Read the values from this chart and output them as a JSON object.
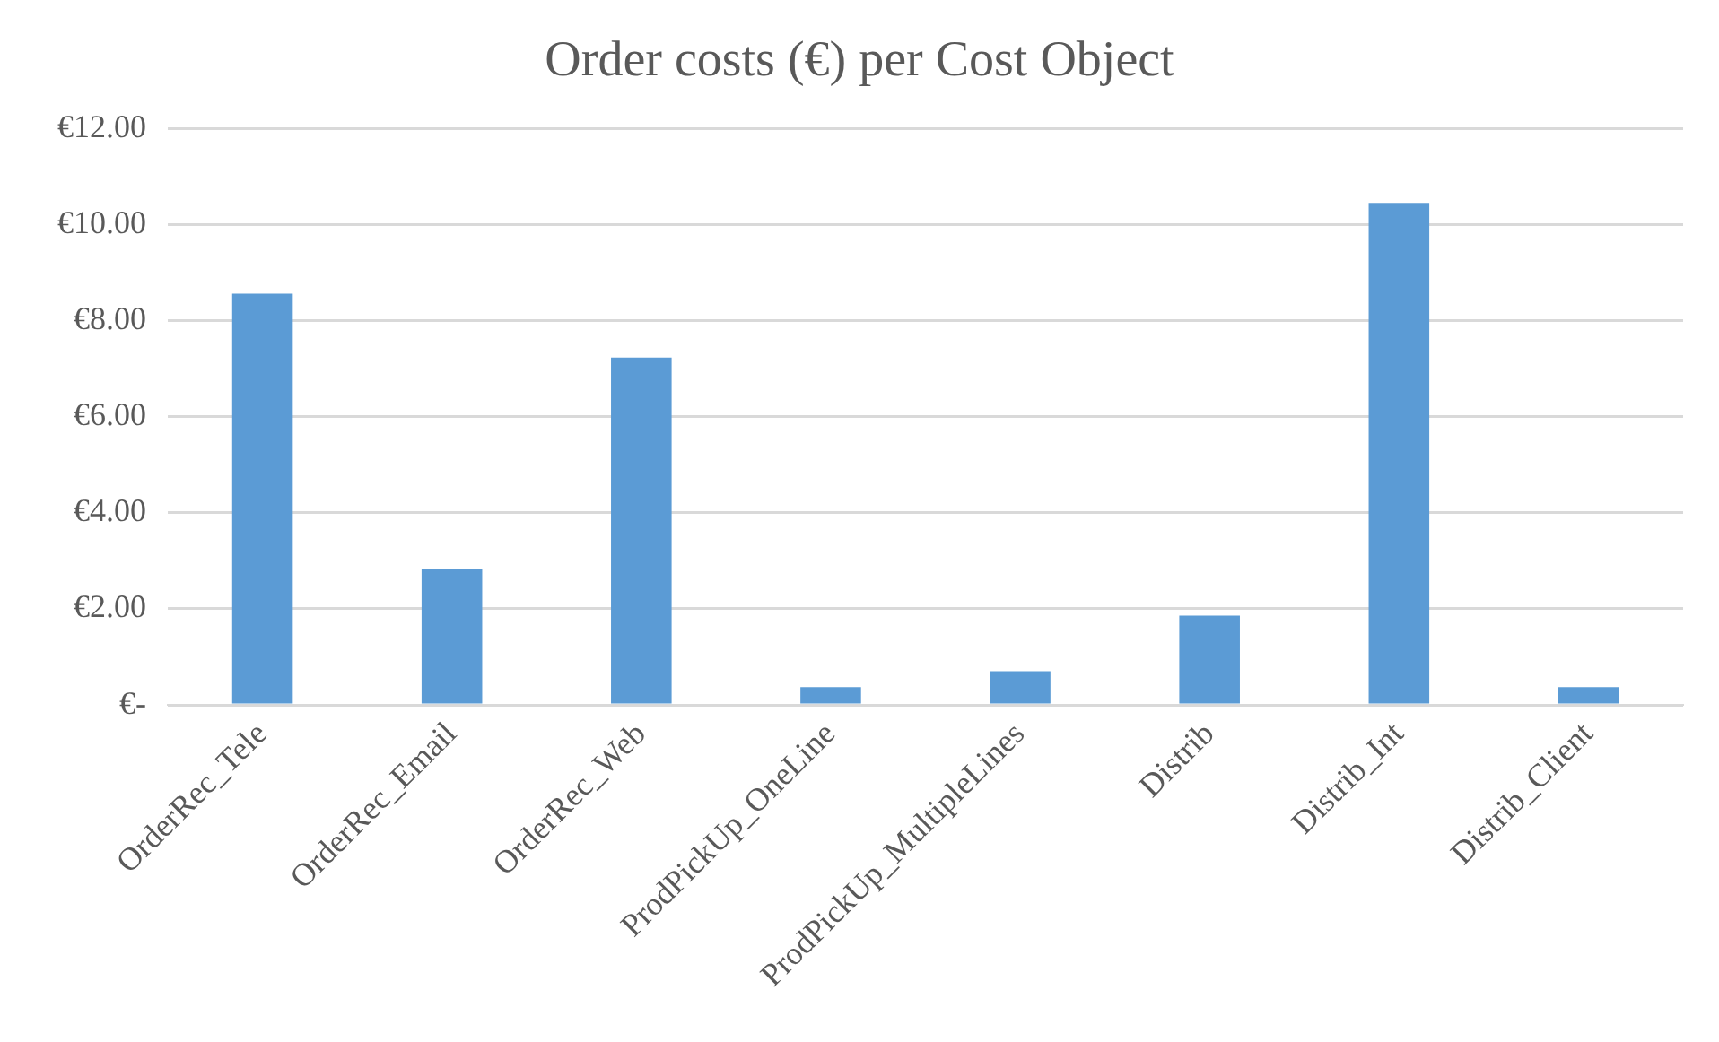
{
  "chart_data": {
    "type": "bar",
    "title": "Order costs (€) per Cost Object",
    "categories": [
      "OrderRec_Tele",
      "OrderRec_Email",
      "OrderRec_Web",
      "ProdPickUp_OneLine",
      "ProdPickUp_MultipleLines",
      "Distrib",
      "Distrib_Int",
      "Distrib_Client"
    ],
    "values": [
      8.56,
      2.84,
      7.23,
      0.37,
      0.7,
      1.86,
      10.45,
      0.37
    ],
    "color": "#5b9bd5",
    "ylim": [
      0,
      12
    ],
    "yticks": [
      {
        "value": 0,
        "label": "€-"
      },
      {
        "value": 2,
        "label": "€2.00"
      },
      {
        "value": 4,
        "label": "€4.00"
      },
      {
        "value": 6,
        "label": "€6.00"
      },
      {
        "value": 8,
        "label": "€8.00"
      },
      {
        "value": 10,
        "label": "€10.00"
      },
      {
        "value": 12,
        "label": "€12.00"
      }
    ],
    "grid": "y",
    "legend": false
  }
}
